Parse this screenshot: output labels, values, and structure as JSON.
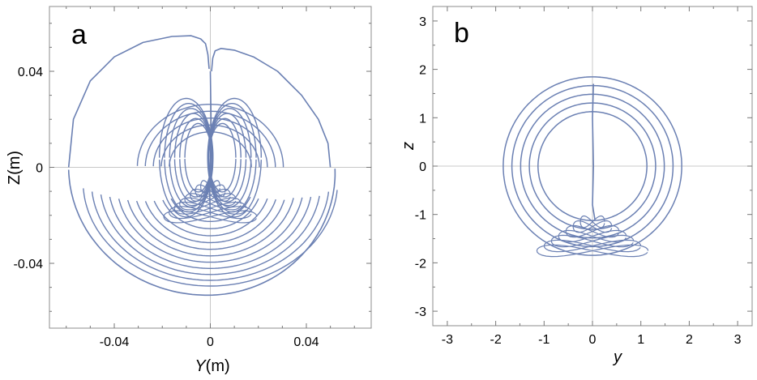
{
  "chart_data": [
    {
      "type": "line",
      "panel_label": "a",
      "xlabel_var": "Y",
      "xlabel_unit": "(m)",
      "ylabel": "Z(m)",
      "xlim": [
        -0.067,
        0.067
      ],
      "ylim": [
        -0.067,
        0.067
      ],
      "x_ticks": [
        -0.04,
        0,
        0.04
      ],
      "x_tick_labels": [
        "-0.04",
        "0",
        "0.04"
      ],
      "y_ticks": [
        0.04,
        0,
        -0.04
      ],
      "y_tick_labels": [
        "0.04",
        "0",
        "-0.04"
      ],
      "grid": "axes-through-origin",
      "line_color": "#6b80b3",
      "series": [
        {
          "x": [
            0.0005,
            0.001,
            0.002,
            0.0045,
            0.01,
            0.018,
            0.028,
            0.038,
            0.045,
            0.049,
            0.05
          ],
          "y": [
            0.04,
            0.0455,
            0.0485,
            0.0495,
            0.0488,
            0.046,
            0.04,
            0.03,
            0.02,
            0.01,
            0.0
          ]
        },
        {
          "x": [
            -0.0005,
            -0.001,
            -0.002,
            -0.004,
            -0.008,
            -0.016,
            -0.028,
            -0.04,
            -0.05,
            -0.057,
            -0.059
          ],
          "y": [
            0.041,
            0.047,
            0.0515,
            0.0535,
            0.0548,
            0.0545,
            0.052,
            0.046,
            0.036,
            0.02,
            0.0
          ]
        }
      ],
      "spirals": {
        "cy": -0.003,
        "right_tail_start": 0.056,
        "left_tail_end": -0.048,
        "outer_radius": 0.057,
        "inner_radius": 0.012
      }
    },
    {
      "type": "line",
      "panel_label": "b",
      "xlabel": "y",
      "ylabel": "z",
      "xlim": [
        -3.3,
        3.3
      ],
      "ylim": [
        -3.3,
        3.3
      ],
      "x_ticks": [
        -3,
        -2,
        -1,
        0,
        1,
        2,
        3
      ],
      "x_tick_labels": [
        "-3",
        "-2",
        "-1",
        "0",
        "1",
        "2",
        "3"
      ],
      "y_ticks": [
        3,
        2,
        1,
        0,
        -1,
        -2,
        -3
      ],
      "y_tick_labels": [
        "3",
        "2",
        "1",
        "0",
        "-1",
        "-2",
        "-3"
      ],
      "grid": "axes-through-origin",
      "line_color": "#6b80b3",
      "loops": {
        "cy": 0.0,
        "outer_radius": 2.05,
        "inner_radius": 1.25,
        "count": 5
      }
    }
  ]
}
